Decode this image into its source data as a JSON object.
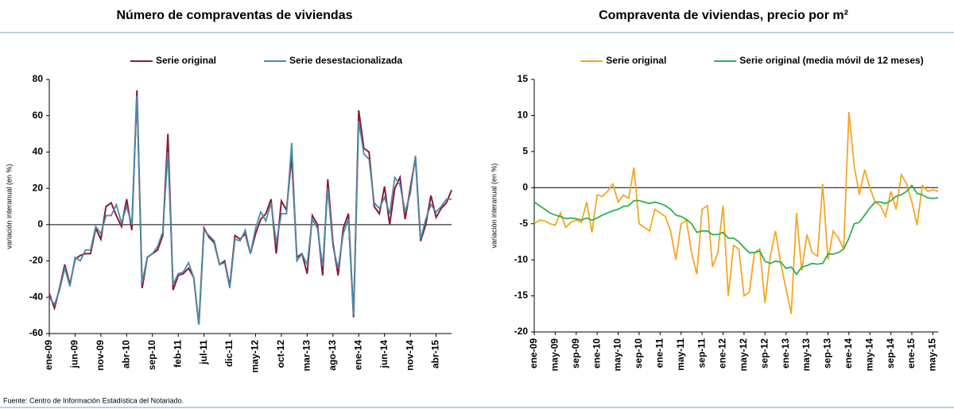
{
  "chart_data": [
    {
      "type": "line",
      "title": "Número de compraventas de viviendas",
      "y_label": "variación interanual (en %)",
      "categories": [
        "ene-09",
        null,
        null,
        null,
        null,
        "jun-09",
        null,
        null,
        null,
        null,
        "nov-09",
        null,
        null,
        null,
        null,
        "abr-10",
        null,
        null,
        null,
        null,
        "sep-10",
        null,
        null,
        null,
        null,
        "feb-11",
        null,
        null,
        null,
        null,
        "jul-11",
        null,
        null,
        null,
        null,
        "dic-11",
        null,
        null,
        null,
        null,
        "may-12",
        null,
        null,
        null,
        null,
        "oct-12",
        null,
        null,
        null,
        null,
        "mar-13",
        null,
        null,
        null,
        null,
        "ago-13",
        null,
        null,
        null,
        null,
        "ene-14",
        null,
        null,
        null,
        null,
        "jun-14",
        null,
        null,
        null,
        null,
        "nov-14",
        null,
        null,
        null,
        null,
        "abr-15",
        null,
        null,
        null
      ],
      "series": [
        {
          "name": "Serie original",
          "color": "#8b1a3a",
          "values": [
            -38,
            -46,
            -35,
            -22,
            -33,
            -19,
            -17,
            -16,
            -16,
            -2,
            -8,
            10,
            12,
            5,
            -1,
            14,
            -3,
            74,
            -35,
            -18,
            -16,
            -14,
            -6,
            50,
            -36,
            -28,
            -27,
            -24,
            -29,
            -55,
            -2,
            -7,
            -10,
            -22,
            -20,
            -34,
            -6,
            -8,
            -5,
            -16,
            -5,
            3,
            6,
            14,
            -16,
            13,
            8,
            38,
            -18,
            -16,
            -27,
            5,
            0,
            -28,
            25,
            -10,
            -28,
            -2,
            6,
            -51,
            63,
            42,
            40,
            10,
            6,
            21,
            0,
            20,
            26,
            3,
            20,
            37,
            -9,
            0,
            16,
            4,
            9,
            12,
            19
          ]
        },
        {
          "name": "Serie desestacionalizada",
          "color": "#4a8ba8",
          "values": [
            -40,
            -44,
            -36,
            -24,
            -34,
            -18,
            -20,
            -14,
            -14,
            -1,
            -5,
            5,
            5,
            11,
            1,
            10,
            0,
            71,
            -32,
            -18,
            -16,
            -12,
            -4,
            40,
            -33,
            -27,
            -26,
            -21,
            -29,
            -55,
            -3,
            -6,
            -9,
            -22,
            -21,
            -35,
            -8,
            -9,
            -3,
            -16,
            -2,
            7,
            2,
            12,
            -10,
            6,
            6,
            45,
            -20,
            -16,
            -22,
            3,
            -2,
            -23,
            20,
            -12,
            -24,
            -5,
            3,
            -50,
            57,
            39,
            36,
            12,
            9,
            15,
            6,
            26,
            22,
            7,
            17,
            38,
            -8,
            3,
            11,
            7,
            10,
            14,
            14
          ]
        }
      ],
      "ylim": [
        -60,
        80
      ],
      "yticks": [
        -60,
        -40,
        -20,
        0,
        20,
        40,
        60,
        80
      ],
      "legend": "top",
      "grid": false
    },
    {
      "type": "line",
      "title": "Compraventa de viviendas, precio por m²",
      "y_label": "variación interanual (en %)",
      "categories": [
        "ene-09",
        null,
        null,
        null,
        "may-09",
        null,
        null,
        null,
        "sep-09",
        null,
        null,
        null,
        "ene-10",
        null,
        null,
        null,
        "may-10",
        null,
        null,
        null,
        "sep-10",
        null,
        null,
        null,
        "ene-11",
        null,
        null,
        null,
        "may-11",
        null,
        null,
        null,
        "sep-11",
        null,
        null,
        null,
        "ene-12",
        null,
        null,
        null,
        "may-12",
        null,
        null,
        null,
        "sep-12",
        null,
        null,
        null,
        "ene-13",
        null,
        null,
        null,
        "may-13",
        null,
        null,
        null,
        "sep-13",
        null,
        null,
        null,
        "ene-14",
        null,
        null,
        null,
        "may-14",
        null,
        null,
        null,
        "sep-14",
        null,
        null,
        null,
        "ene-15",
        null,
        null,
        null,
        "may-15",
        null
      ],
      "series": [
        {
          "name": "Serie original",
          "color": "#f5a623",
          "values": [
            -5,
            -4.5,
            -4.6,
            -5,
            -5.2,
            -3.5,
            -5.5,
            -4.8,
            -4.5,
            -4.8,
            -2,
            -6.2,
            -1,
            -1.2,
            -0.5,
            0.5,
            -2,
            -1,
            -1.5,
            2.8,
            -5,
            -5.5,
            -6,
            -3,
            -3.5,
            -4,
            -6,
            -10,
            -5,
            -4.5,
            -9,
            -12,
            -3,
            -2.5,
            -11,
            -9,
            -2.5,
            -15,
            -8,
            -8.5,
            -15,
            -14.5,
            -9,
            -8.5,
            -16,
            -9.5,
            -6,
            -10.5,
            -14,
            -17.5,
            -3.5,
            -11.5,
            -6.5,
            -9,
            -9.5,
            0.5,
            -10,
            -6,
            -7,
            -8.5,
            10.5,
            3,
            -1,
            2.5,
            0,
            -2,
            -2.5,
            -4,
            -0.5,
            -3,
            1.8,
            0.5,
            -2,
            -5.2,
            0.3,
            -0.5,
            -0.3,
            -0.5
          ]
        },
        {
          "name": "Serie original (media móvil de 12 meses)",
          "color": "#2db34a",
          "values": [
            -2,
            -2.5,
            -3,
            -3.5,
            -3.8,
            -4,
            -4.3,
            -4.2,
            -4.3,
            -4.5,
            -4.2,
            -4.5,
            -4.2,
            -3.8,
            -3.5,
            -3.2,
            -3,
            -2.6,
            -2.5,
            -1.8,
            -1.8,
            -2,
            -2.2,
            -2,
            -2.2,
            -2.5,
            -3,
            -3.8,
            -4,
            -4.4,
            -5,
            -6.2,
            -6,
            -6,
            -6.5,
            -6.5,
            -6.2,
            -7,
            -7,
            -7.5,
            -8.3,
            -9,
            -9,
            -8.8,
            -10.2,
            -10.5,
            -10.2,
            -10.3,
            -11.2,
            -11,
            -12,
            -11,
            -10.8,
            -10.5,
            -10.6,
            -10.5,
            -9.2,
            -9.2,
            -9,
            -8.5,
            -7,
            -5,
            -4.8,
            -3.8,
            -2.8,
            -2,
            -2,
            -2.2,
            -1.8,
            -1.2,
            -1,
            -0.5,
            0.3,
            -0.8,
            -1,
            -1.4,
            -1.5,
            -1.4
          ]
        }
      ],
      "ylim": [
        -20,
        15
      ],
      "yticks": [
        -20,
        -15,
        -10,
        -5,
        0,
        5,
        10,
        15
      ],
      "legend": "top",
      "grid": false
    }
  ],
  "source": "Fuente: Centro de Información Estadística del Notariado."
}
